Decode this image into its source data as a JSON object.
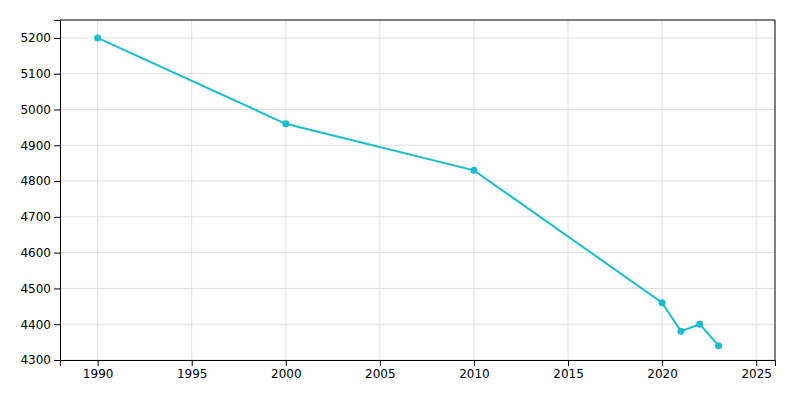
{
  "chart_data": {
    "type": "line",
    "x": [
      1990,
      2000,
      2010,
      2020,
      2021,
      2022,
      2023
    ],
    "series": [
      {
        "values": [
          5200,
          4960,
          4830,
          4460,
          4380,
          4400,
          4340
        ],
        "color": "#17becf",
        "marker": "circle"
      }
    ],
    "xlim": [
      1988,
      2026
    ],
    "ylim": [
      4300,
      5250
    ],
    "xticks": [
      1990,
      1995,
      2000,
      2005,
      2010,
      2015,
      2020,
      2025
    ],
    "yticks": [
      4300,
      4400,
      4500,
      4600,
      4700,
      4800,
      4900,
      5000,
      5100,
      5200
    ],
    "grid": true
  }
}
